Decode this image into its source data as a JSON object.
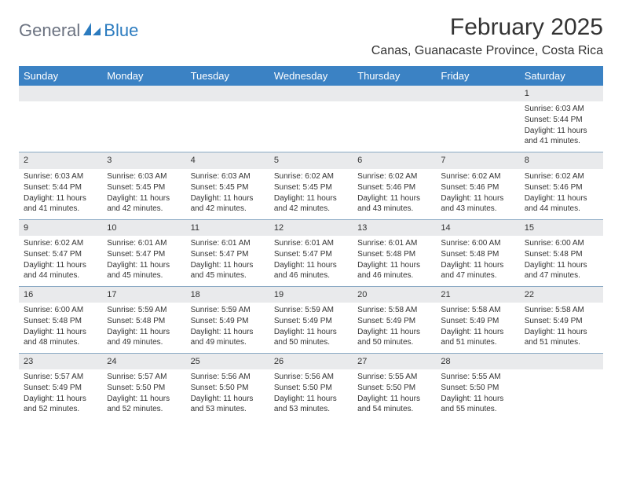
{
  "logo": {
    "general": "General",
    "blue": "Blue"
  },
  "title": "February 2025",
  "location": "Canas, Guanacaste Province, Costa Rica",
  "colors": {
    "header_bg": "#3b82c4",
    "header_text": "#ffffff",
    "daynum_bg": "#e9eaec",
    "divider": "#8aa9c4",
    "text": "#333333",
    "logo_gray": "#6b7280",
    "logo_blue": "#2b7bbf"
  },
  "day_names": [
    "Sunday",
    "Monday",
    "Tuesday",
    "Wednesday",
    "Thursday",
    "Friday",
    "Saturday"
  ],
  "weeks": [
    [
      {
        "day": "",
        "sunrise": "",
        "sunset": "",
        "daylight": ""
      },
      {
        "day": "",
        "sunrise": "",
        "sunset": "",
        "daylight": ""
      },
      {
        "day": "",
        "sunrise": "",
        "sunset": "",
        "daylight": ""
      },
      {
        "day": "",
        "sunrise": "",
        "sunset": "",
        "daylight": ""
      },
      {
        "day": "",
        "sunrise": "",
        "sunset": "",
        "daylight": ""
      },
      {
        "day": "",
        "sunrise": "",
        "sunset": "",
        "daylight": ""
      },
      {
        "day": "1",
        "sunrise": "Sunrise: 6:03 AM",
        "sunset": "Sunset: 5:44 PM",
        "daylight": "Daylight: 11 hours and 41 minutes."
      }
    ],
    [
      {
        "day": "2",
        "sunrise": "Sunrise: 6:03 AM",
        "sunset": "Sunset: 5:44 PM",
        "daylight": "Daylight: 11 hours and 41 minutes."
      },
      {
        "day": "3",
        "sunrise": "Sunrise: 6:03 AM",
        "sunset": "Sunset: 5:45 PM",
        "daylight": "Daylight: 11 hours and 42 minutes."
      },
      {
        "day": "4",
        "sunrise": "Sunrise: 6:03 AM",
        "sunset": "Sunset: 5:45 PM",
        "daylight": "Daylight: 11 hours and 42 minutes."
      },
      {
        "day": "5",
        "sunrise": "Sunrise: 6:02 AM",
        "sunset": "Sunset: 5:45 PM",
        "daylight": "Daylight: 11 hours and 42 minutes."
      },
      {
        "day": "6",
        "sunrise": "Sunrise: 6:02 AM",
        "sunset": "Sunset: 5:46 PM",
        "daylight": "Daylight: 11 hours and 43 minutes."
      },
      {
        "day": "7",
        "sunrise": "Sunrise: 6:02 AM",
        "sunset": "Sunset: 5:46 PM",
        "daylight": "Daylight: 11 hours and 43 minutes."
      },
      {
        "day": "8",
        "sunrise": "Sunrise: 6:02 AM",
        "sunset": "Sunset: 5:46 PM",
        "daylight": "Daylight: 11 hours and 44 minutes."
      }
    ],
    [
      {
        "day": "9",
        "sunrise": "Sunrise: 6:02 AM",
        "sunset": "Sunset: 5:47 PM",
        "daylight": "Daylight: 11 hours and 44 minutes."
      },
      {
        "day": "10",
        "sunrise": "Sunrise: 6:01 AM",
        "sunset": "Sunset: 5:47 PM",
        "daylight": "Daylight: 11 hours and 45 minutes."
      },
      {
        "day": "11",
        "sunrise": "Sunrise: 6:01 AM",
        "sunset": "Sunset: 5:47 PM",
        "daylight": "Daylight: 11 hours and 45 minutes."
      },
      {
        "day": "12",
        "sunrise": "Sunrise: 6:01 AM",
        "sunset": "Sunset: 5:47 PM",
        "daylight": "Daylight: 11 hours and 46 minutes."
      },
      {
        "day": "13",
        "sunrise": "Sunrise: 6:01 AM",
        "sunset": "Sunset: 5:48 PM",
        "daylight": "Daylight: 11 hours and 46 minutes."
      },
      {
        "day": "14",
        "sunrise": "Sunrise: 6:00 AM",
        "sunset": "Sunset: 5:48 PM",
        "daylight": "Daylight: 11 hours and 47 minutes."
      },
      {
        "day": "15",
        "sunrise": "Sunrise: 6:00 AM",
        "sunset": "Sunset: 5:48 PM",
        "daylight": "Daylight: 11 hours and 47 minutes."
      }
    ],
    [
      {
        "day": "16",
        "sunrise": "Sunrise: 6:00 AM",
        "sunset": "Sunset: 5:48 PM",
        "daylight": "Daylight: 11 hours and 48 minutes."
      },
      {
        "day": "17",
        "sunrise": "Sunrise: 5:59 AM",
        "sunset": "Sunset: 5:48 PM",
        "daylight": "Daylight: 11 hours and 49 minutes."
      },
      {
        "day": "18",
        "sunrise": "Sunrise: 5:59 AM",
        "sunset": "Sunset: 5:49 PM",
        "daylight": "Daylight: 11 hours and 49 minutes."
      },
      {
        "day": "19",
        "sunrise": "Sunrise: 5:59 AM",
        "sunset": "Sunset: 5:49 PM",
        "daylight": "Daylight: 11 hours and 50 minutes."
      },
      {
        "day": "20",
        "sunrise": "Sunrise: 5:58 AM",
        "sunset": "Sunset: 5:49 PM",
        "daylight": "Daylight: 11 hours and 50 minutes."
      },
      {
        "day": "21",
        "sunrise": "Sunrise: 5:58 AM",
        "sunset": "Sunset: 5:49 PM",
        "daylight": "Daylight: 11 hours and 51 minutes."
      },
      {
        "day": "22",
        "sunrise": "Sunrise: 5:58 AM",
        "sunset": "Sunset: 5:49 PM",
        "daylight": "Daylight: 11 hours and 51 minutes."
      }
    ],
    [
      {
        "day": "23",
        "sunrise": "Sunrise: 5:57 AM",
        "sunset": "Sunset: 5:49 PM",
        "daylight": "Daylight: 11 hours and 52 minutes."
      },
      {
        "day": "24",
        "sunrise": "Sunrise: 5:57 AM",
        "sunset": "Sunset: 5:50 PM",
        "daylight": "Daylight: 11 hours and 52 minutes."
      },
      {
        "day": "25",
        "sunrise": "Sunrise: 5:56 AM",
        "sunset": "Sunset: 5:50 PM",
        "daylight": "Daylight: 11 hours and 53 minutes."
      },
      {
        "day": "26",
        "sunrise": "Sunrise: 5:56 AM",
        "sunset": "Sunset: 5:50 PM",
        "daylight": "Daylight: 11 hours and 53 minutes."
      },
      {
        "day": "27",
        "sunrise": "Sunrise: 5:55 AM",
        "sunset": "Sunset: 5:50 PM",
        "daylight": "Daylight: 11 hours and 54 minutes."
      },
      {
        "day": "28",
        "sunrise": "Sunrise: 5:55 AM",
        "sunset": "Sunset: 5:50 PM",
        "daylight": "Daylight: 11 hours and 55 minutes."
      },
      {
        "day": "",
        "sunrise": "",
        "sunset": "",
        "daylight": ""
      }
    ]
  ]
}
